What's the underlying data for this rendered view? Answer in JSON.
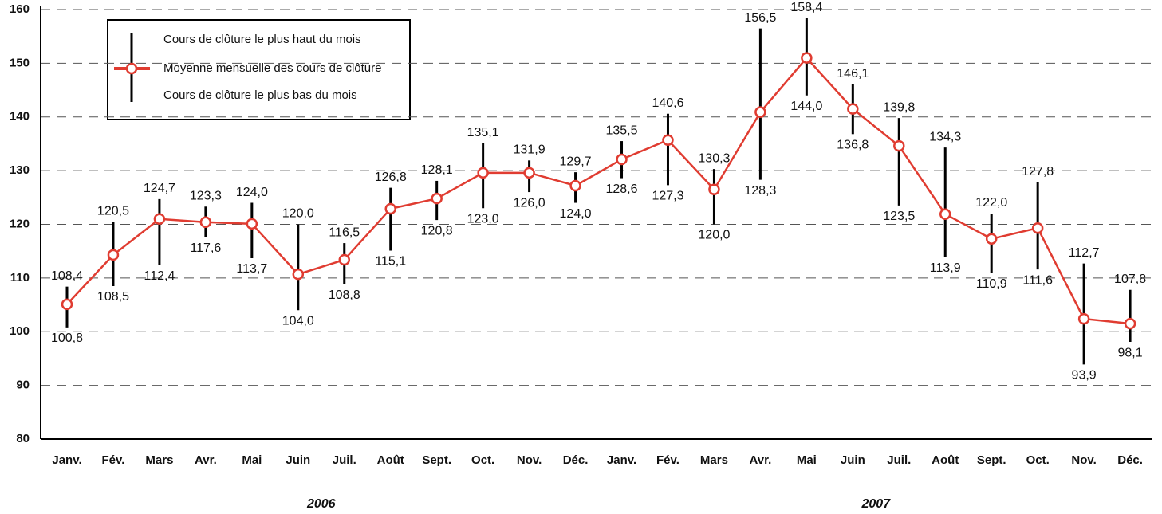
{
  "chart_data": {
    "type": "range_line",
    "categories": [
      "Janv.",
      "Fév.",
      "Mars",
      "Avr.",
      "Mai",
      "Juin",
      "Juil.",
      "Août",
      "Sept.",
      "Oct.",
      "Nov.",
      "Déc.",
      "Janv.",
      "Fév.",
      "Mars",
      "Avr.",
      "Mai",
      "Juin",
      "Juil.",
      "Août",
      "Sept.",
      "Oct.",
      "Nov.",
      "Déc."
    ],
    "year_labels": [
      "2006",
      "2007"
    ],
    "series": [
      {
        "name": "Cours de clôture le plus haut du mois",
        "color": "#000000",
        "values": [
          108.4,
          120.5,
          124.7,
          123.3,
          124.0,
          120.0,
          116.5,
          126.8,
          128.1,
          135.1,
          131.9,
          129.7,
          135.5,
          140.6,
          130.3,
          156.5,
          158.4,
          146.1,
          139.8,
          134.3,
          122.0,
          127.8,
          112.7,
          107.8
        ],
        "value_labels": [
          "108,4",
          "120,5",
          "124,7",
          "123,3",
          "124,0",
          "120,0",
          "116,5",
          "126,8",
          "128,1",
          "135,1",
          "131,9",
          "129,7",
          "135,5",
          "140,6",
          "130,3",
          "156,5",
          "158,4",
          "146,1",
          "139,8",
          "134,3",
          "122,0",
          "127,8",
          "112,7",
          "107,8"
        ]
      },
      {
        "name": "Moyenne mensuelle des cours de clôture",
        "color": "#e03c31",
        "values": [
          105.1,
          114.3,
          121.0,
          120.4,
          120.1,
          110.7,
          113.4,
          122.9,
          124.8,
          129.6,
          129.6,
          127.2,
          132.1,
          135.7,
          126.5,
          140.9,
          151.0,
          141.5,
          134.6,
          121.9,
          117.3,
          119.3,
          102.4,
          101.5
        ]
      },
      {
        "name": "Cours de clôture le plus bas du mois",
        "color": "#000000",
        "values": [
          100.8,
          108.5,
          112.4,
          117.6,
          113.7,
          104.0,
          108.8,
          115.1,
          120.8,
          123.0,
          126.0,
          124.0,
          128.6,
          127.3,
          120.0,
          128.3,
          144.0,
          136.8,
          123.5,
          113.9,
          110.9,
          111.6,
          93.9,
          98.1
        ],
        "value_labels": [
          "100,8",
          "108,5",
          "112,4",
          "117,6",
          "113,7",
          "104,0",
          "108,8",
          "115,1",
          "120,8",
          "123,0",
          "126,0",
          "124,0",
          "128,6",
          "127,3",
          "120,0",
          "128,3",
          "144,0",
          "136,8",
          "123,5",
          "113,9",
          "110,9",
          "111,6",
          "93,9",
          "98,1"
        ]
      }
    ],
    "ylim": [
      80,
      160
    ],
    "yticks": [
      80,
      90,
      100,
      110,
      120,
      130,
      140,
      150,
      160
    ],
    "grid": true
  }
}
